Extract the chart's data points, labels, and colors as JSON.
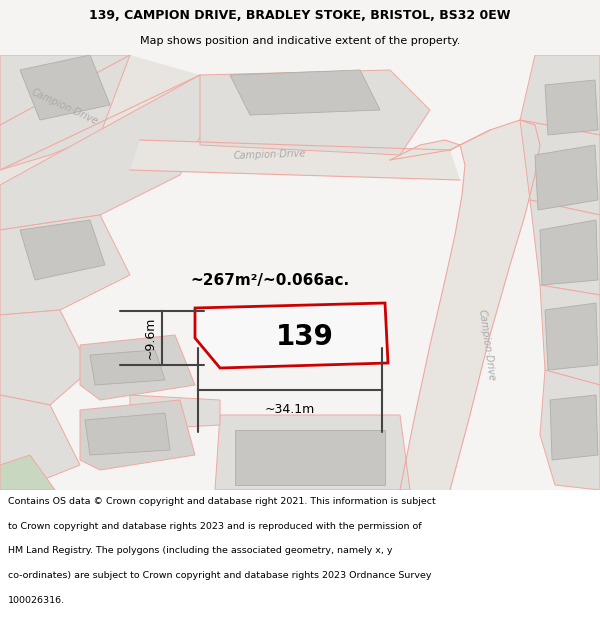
{
  "title_line1": "139, CAMPION DRIVE, BRADLEY STOKE, BRISTOL, BS32 0EW",
  "title_line2": "Map shows position and indicative extent of the property.",
  "property_number": "139",
  "area_text": "~267m²/~0.066ac.",
  "width_label": "~34.1m",
  "height_label": "~9.6m",
  "footer_lines": [
    "Contains OS data © Crown copyright and database right 2021. This information is subject",
    "to Crown copyright and database rights 2023 and is reproduced with the permission of",
    "HM Land Registry. The polygons (including the associated geometry, namely x, y",
    "co-ordinates) are subject to Crown copyright and database rights 2023 Ordnance Survey",
    "100026316."
  ],
  "bg_color": "#f5f4f2",
  "map_bg": "#f0eeea",
  "road_color": "#f0a8a0",
  "property_fill": "#f8f8f8",
  "property_edge": "#cc0000",
  "parcel_fill": "#e0deda",
  "parcel_fill2": "#d4d2ce",
  "building_fill": "#c8c6c2",
  "green_fill": "#c8d8c0",
  "footer_bg": "#ffffff",
  "dim_color": "#444444",
  "road_label_color": "#aaaaaa",
  "road_fill": "#e8e5e0"
}
